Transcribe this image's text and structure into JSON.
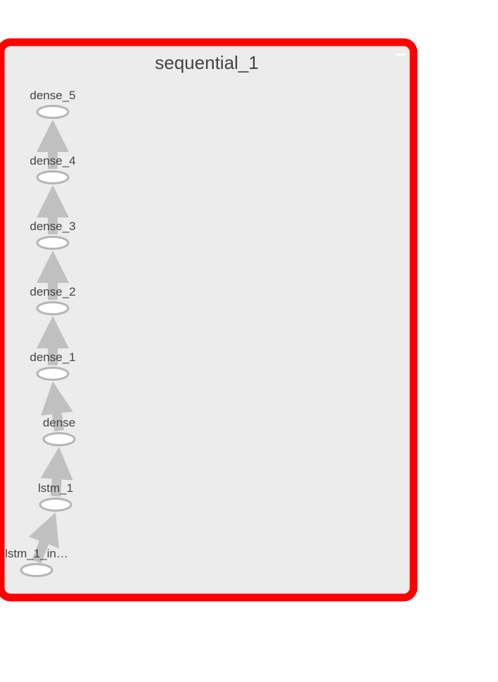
{
  "graph": {
    "title": "sequential_1",
    "collapse_glyph": "minus-icon",
    "colors": {
      "border": "#ff0000",
      "panel": "#ececec",
      "edge": "#c0c0c0",
      "node_stroke": "#b5b5b5",
      "node_fill": "#ffffff",
      "text": "#444444"
    },
    "nodes": [
      {
        "id": "lstm_1_input",
        "label": "lstm_1_in…"
      },
      {
        "id": "lstm_1",
        "label": "lstm_1"
      },
      {
        "id": "dense",
        "label": "dense"
      },
      {
        "id": "dense_1",
        "label": "dense_1"
      },
      {
        "id": "dense_2",
        "label": "dense_2"
      },
      {
        "id": "dense_3",
        "label": "dense_3"
      },
      {
        "id": "dense_4",
        "label": "dense_4"
      },
      {
        "id": "dense_5",
        "label": "dense_5"
      }
    ],
    "edges": [
      {
        "from": "lstm_1_input",
        "to": "lstm_1"
      },
      {
        "from": "lstm_1",
        "to": "dense"
      },
      {
        "from": "dense",
        "to": "dense_1"
      },
      {
        "from": "dense_1",
        "to": "dense_2"
      },
      {
        "from": "dense_2",
        "to": "dense_3"
      },
      {
        "from": "dense_3",
        "to": "dense_4"
      },
      {
        "from": "dense_4",
        "to": "dense_5"
      }
    ]
  }
}
